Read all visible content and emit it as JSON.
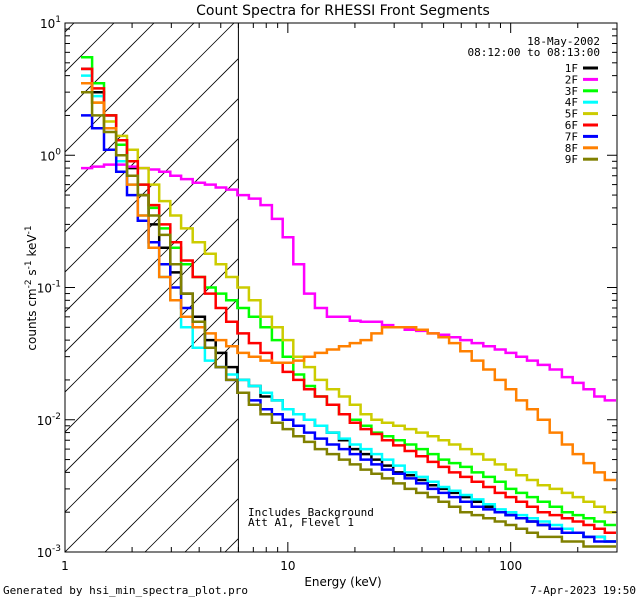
{
  "chart_data": {
    "type": "line",
    "title": "Count Spectra for RHESSI Front Segments",
    "xlabel": "Energy (keV)",
    "ylabel_parts": {
      "main": "counts cm",
      "exp1": "-2",
      "mid": " s",
      "exp2": "-1",
      "unit": " keV",
      "exp3": "-1"
    },
    "xscale": "log",
    "yscale": "log",
    "xlim": [
      1,
      300
    ],
    "ylim": [
      0.001,
      10
    ],
    "x_ticks": [
      {
        "value": 1,
        "label": "1"
      },
      {
        "value": 10,
        "label": "10"
      },
      {
        "value": 100,
        "label": "100"
      }
    ],
    "y_ticks": [
      {
        "value": 0.001,
        "base": "10",
        "exp": "-3"
      },
      {
        "value": 0.01,
        "base": "10",
        "exp": "-2"
      },
      {
        "value": 0.1,
        "base": "10",
        "exp": "-1"
      },
      {
        "value": 1,
        "base": "10",
        "exp": "0"
      },
      {
        "value": 10,
        "base": "10",
        "exp": "1"
      }
    ],
    "date": "18-May-2002",
    "time_range": "08:12:00 to 08:13:00",
    "attenuator_threshold_keV": 6,
    "annotation_lines": [
      "Includes Background",
      "Att A1, Flevel 1"
    ],
    "x": [
      1.25,
      1.4,
      1.6,
      1.8,
      2.0,
      2.25,
      2.5,
      2.8,
      3.15,
      3.5,
      4.0,
      4.5,
      5.0,
      5.6,
      6.3,
      7.1,
      8.0,
      9.0,
      10,
      11.2,
      12.5,
      14,
      16,
      18,
      20,
      22.5,
      25,
      28,
      31.5,
      35.5,
      40,
      45,
      50,
      56,
      63,
      71,
      80,
      90,
      100,
      112,
      125,
      140,
      160,
      180,
      200,
      225,
      250,
      280
    ],
    "series": [
      {
        "name": "1F",
        "color": "#000000",
        "values": [
          4.5,
          3.0,
          2.0,
          1.3,
          0.8,
          0.5,
          0.3,
          0.2,
          0.13,
          0.09,
          0.06,
          0.04,
          0.032,
          0.025,
          0.02,
          0.018,
          0.015,
          0.014,
          0.012,
          0.011,
          0.01,
          0.009,
          0.008,
          0.007,
          0.006,
          0.0055,
          0.005,
          0.0045,
          0.004,
          0.0038,
          0.0035,
          0.0032,
          0.003,
          0.0028,
          0.0026,
          0.0024,
          0.0022,
          0.002,
          0.0019,
          0.0018,
          0.0017,
          0.0016,
          0.0015,
          0.0014,
          0.0014,
          0.0013,
          0.0013,
          0.0012
        ]
      },
      {
        "name": "2F",
        "color": "#ff00ff",
        "values": [
          0.8,
          0.82,
          0.85,
          0.85,
          0.82,
          0.8,
          0.78,
          0.75,
          0.7,
          0.66,
          0.62,
          0.6,
          0.57,
          0.55,
          0.5,
          0.47,
          0.42,
          0.33,
          0.24,
          0.15,
          0.09,
          0.07,
          0.06,
          0.06,
          0.056,
          0.055,
          0.055,
          0.052,
          0.05,
          0.048,
          0.047,
          0.045,
          0.044,
          0.042,
          0.04,
          0.038,
          0.036,
          0.034,
          0.032,
          0.03,
          0.028,
          0.026,
          0.024,
          0.021,
          0.019,
          0.017,
          0.015,
          0.014
        ]
      },
      {
        "name": "3F",
        "color": "#00ff00",
        "values": [
          5.5,
          3.5,
          2.0,
          1.2,
          0.9,
          0.6,
          0.4,
          0.28,
          0.2,
          0.15,
          0.12,
          0.1,
          0.09,
          0.08,
          0.07,
          0.06,
          0.05,
          0.04,
          0.03,
          0.022,
          0.018,
          0.015,
          0.013,
          0.011,
          0.01,
          0.009,
          0.008,
          0.0075,
          0.007,
          0.0065,
          0.006,
          0.0055,
          0.005,
          0.0047,
          0.0044,
          0.004,
          0.0037,
          0.0034,
          0.003,
          0.0028,
          0.0026,
          0.0024,
          0.0022,
          0.002,
          0.0019,
          0.0018,
          0.0017,
          0.0016
        ]
      },
      {
        "name": "4F",
        "color": "#00ffff",
        "values": [
          4.0,
          2.8,
          1.6,
          0.9,
          0.6,
          0.35,
          0.2,
          0.12,
          0.08,
          0.05,
          0.035,
          0.028,
          0.025,
          0.022,
          0.02,
          0.018,
          0.016,
          0.014,
          0.012,
          0.011,
          0.01,
          0.009,
          0.008,
          0.0072,
          0.0065,
          0.006,
          0.0055,
          0.005,
          0.0045,
          0.004,
          0.0037,
          0.0034,
          0.0031,
          0.0029,
          0.0027,
          0.0025,
          0.0023,
          0.0021,
          0.002,
          0.0019,
          0.0018,
          0.0017,
          0.0016,
          0.0015,
          0.0014,
          0.0013,
          0.0013,
          0.0012
        ]
      },
      {
        "name": "5F",
        "color": "#cccc00",
        "values": [
          3.5,
          2.5,
          1.8,
          1.4,
          1.1,
          0.8,
          0.6,
          0.45,
          0.35,
          0.28,
          0.22,
          0.18,
          0.15,
          0.12,
          0.1,
          0.08,
          0.06,
          0.05,
          0.04,
          0.03,
          0.025,
          0.02,
          0.017,
          0.015,
          0.013,
          0.011,
          0.01,
          0.0095,
          0.009,
          0.0085,
          0.008,
          0.0075,
          0.007,
          0.0065,
          0.006,
          0.0055,
          0.005,
          0.0046,
          0.0042,
          0.0038,
          0.0035,
          0.0032,
          0.003,
          0.0028,
          0.0026,
          0.0024,
          0.0022,
          0.002
        ]
      },
      {
        "name": "6F",
        "color": "#ff0000",
        "values": [
          4.5,
          3.2,
          2.0,
          1.3,
          0.9,
          0.6,
          0.42,
          0.3,
          0.22,
          0.16,
          0.12,
          0.09,
          0.07,
          0.055,
          0.045,
          0.038,
          0.032,
          0.027,
          0.023,
          0.02,
          0.017,
          0.015,
          0.013,
          0.011,
          0.0095,
          0.0085,
          0.0078,
          0.007,
          0.0064,
          0.0058,
          0.0053,
          0.0048,
          0.0044,
          0.004,
          0.0037,
          0.0034,
          0.0031,
          0.0028,
          0.0026,
          0.0024,
          0.0022,
          0.002,
          0.0019,
          0.0018,
          0.0017,
          0.0016,
          0.0015,
          0.0014
        ]
      },
      {
        "name": "7F",
        "color": "#0000ff",
        "values": [
          2.0,
          1.6,
          1.1,
          0.75,
          0.5,
          0.32,
          0.22,
          0.15,
          0.1,
          0.07,
          0.05,
          0.035,
          0.025,
          0.02,
          0.016,
          0.014,
          0.012,
          0.011,
          0.01,
          0.009,
          0.008,
          0.0072,
          0.0065,
          0.006,
          0.0055,
          0.005,
          0.0046,
          0.0042,
          0.0039,
          0.0036,
          0.0033,
          0.003,
          0.0028,
          0.0026,
          0.0024,
          0.0022,
          0.0021,
          0.002,
          0.0019,
          0.0018,
          0.0017,
          0.0016,
          0.0015,
          0.0014,
          0.0014,
          0.0013,
          0.0012,
          0.0012
        ]
      },
      {
        "name": "8F",
        "color": "#ff8000",
        "values": [
          3.5,
          2.5,
          1.6,
          1.0,
          0.6,
          0.35,
          0.2,
          0.12,
          0.08,
          0.06,
          0.05,
          0.045,
          0.04,
          0.036,
          0.032,
          0.03,
          0.028,
          0.027,
          0.027,
          0.028,
          0.03,
          0.032,
          0.034,
          0.036,
          0.038,
          0.04,
          0.045,
          0.05,
          0.05,
          0.05,
          0.048,
          0.045,
          0.042,
          0.038,
          0.033,
          0.028,
          0.024,
          0.02,
          0.017,
          0.014,
          0.012,
          0.01,
          0.008,
          0.0065,
          0.0055,
          0.0047,
          0.004,
          0.0035
        ]
      },
      {
        "name": "9F",
        "color": "#808000",
        "values": [
          3.0,
          2.0,
          1.5,
          1.0,
          0.7,
          0.5,
          0.35,
          0.25,
          0.15,
          0.09,
          0.055,
          0.035,
          0.025,
          0.02,
          0.016,
          0.013,
          0.011,
          0.0095,
          0.0085,
          0.0075,
          0.0068,
          0.006,
          0.0055,
          0.005,
          0.0046,
          0.0042,
          0.0039,
          0.0036,
          0.0033,
          0.003,
          0.0028,
          0.0026,
          0.0024,
          0.0022,
          0.002,
          0.0019,
          0.0018,
          0.0017,
          0.0016,
          0.0015,
          0.0014,
          0.0013,
          0.0013,
          0.0012,
          0.0012,
          0.0011,
          0.0011,
          0.0011
        ]
      }
    ]
  },
  "footer": {
    "generated_by": "Generated by hsi_min_spectra_plot.pro",
    "timestamp": "7-Apr-2023 19:50"
  }
}
